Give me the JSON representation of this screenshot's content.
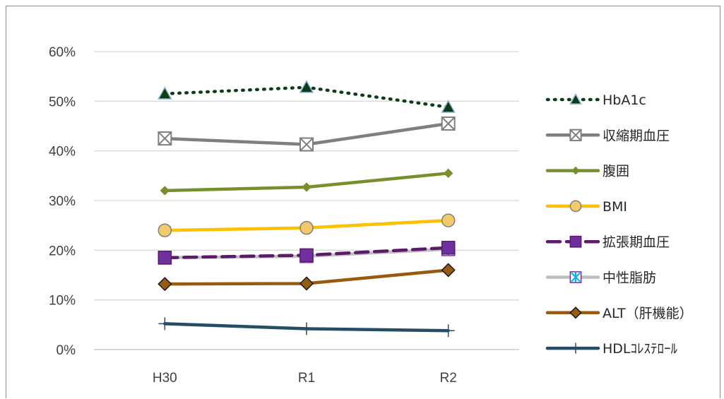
{
  "chart_data": {
    "type": "line",
    "title": "",
    "xlabel": "",
    "ylabel": "",
    "categories": [
      "H30",
      "R1",
      "R2"
    ],
    "y_ticks": [
      "0%",
      "10%",
      "20%",
      "30%",
      "40%",
      "50%",
      "60%"
    ],
    "ylim": [
      0,
      60
    ],
    "grid": true,
    "legend_position": "right",
    "series": [
      {
        "name": "HbA1c",
        "values": [
          51.5,
          52.8,
          48.8
        ],
        "color": "#0b3d17",
        "dash": "dotted",
        "marker": "triangle",
        "marker_fill": "#0b3d17",
        "marker_stroke": "#8fb5d5"
      },
      {
        "name": "収縮期血圧",
        "values": [
          42.5,
          41.3,
          45.5
        ],
        "color": "#7f7f7f",
        "dash": "solid",
        "marker": "x-square",
        "marker_fill": "#ffffff",
        "marker_stroke": "#7f7f7f"
      },
      {
        "name": "腹囲",
        "values": [
          32.0,
          32.7,
          35.5
        ],
        "color": "#77902b",
        "dash": "solid",
        "marker": "diamond-small",
        "marker_fill": "#77902b",
        "marker_stroke": "#77902b"
      },
      {
        "name": "BMI",
        "values": [
          24.0,
          24.5,
          26.0
        ],
        "color": "#ffc000",
        "dash": "solid",
        "marker": "circle",
        "marker_fill": "#f2c96b",
        "marker_stroke": "#7f7f7f"
      },
      {
        "name": "拡張期血圧",
        "values": [
          18.5,
          19.0,
          20.5
        ],
        "color": "#5b1a6b",
        "dash": "dashed",
        "marker": "square",
        "marker_fill": "#7030a0",
        "marker_stroke": "#5b1a6b"
      },
      {
        "name": "中性脂肪",
        "values": [
          18.5,
          18.8,
          20.2
        ],
        "color": "#bfbfbf",
        "dash": "solid",
        "marker": "asterisk",
        "marker_fill": "#ffffff",
        "marker_stroke": "#00b0f0"
      },
      {
        "name": "ALT（肝機能）",
        "values": [
          13.2,
          13.3,
          16.0
        ],
        "color": "#985b0d",
        "dash": "solid",
        "marker": "diamond",
        "marker_fill": "#985b0d",
        "marker_stroke": "#1a1a1a"
      },
      {
        "name": "HDLｺﾚｽﾃﾛｰﾙ",
        "values": [
          5.2,
          4.2,
          3.8
        ],
        "color": "#254e66",
        "dash": "solid",
        "marker": "plus",
        "marker_fill": "#254e66",
        "marker_stroke": "#254e66"
      }
    ]
  }
}
